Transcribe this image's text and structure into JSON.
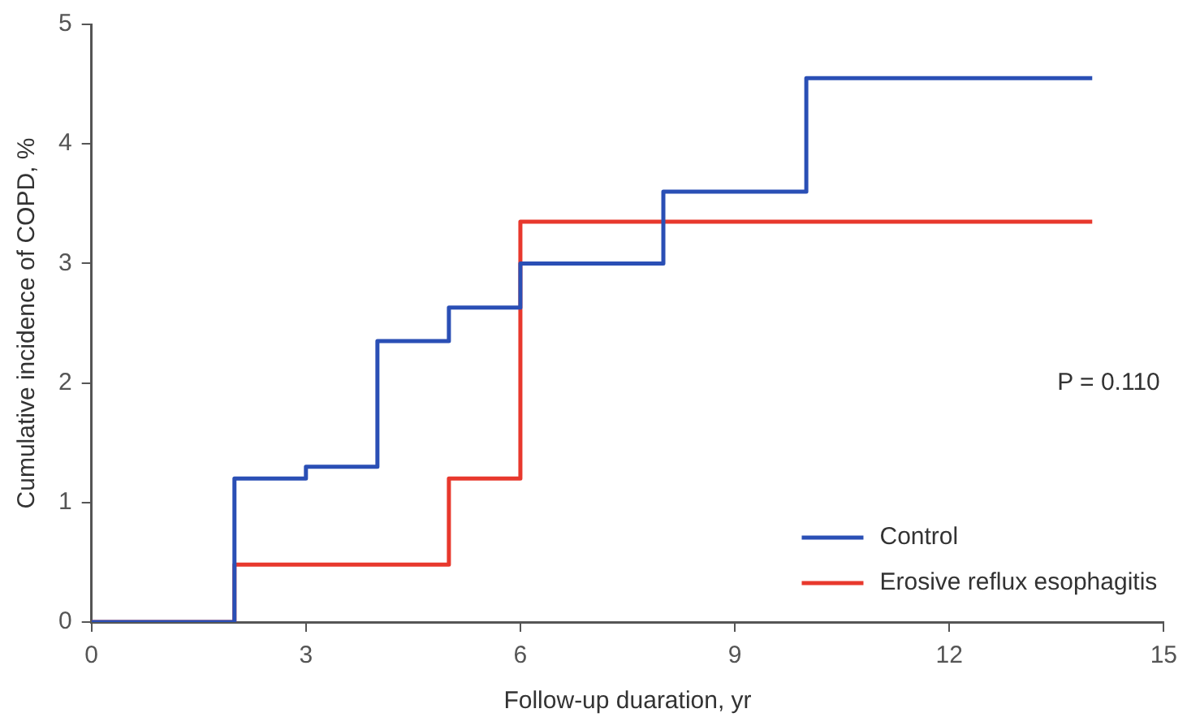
{
  "chart_data": {
    "type": "step",
    "xlabel": "Follow-up duaration, yr",
    "ylabel": "Cumulative incidence of COPD, %",
    "x": [
      0,
      2,
      3,
      4,
      5,
      6,
      8,
      10,
      14
    ],
    "series": [
      {
        "name": "Control",
        "color": "#2a4fb5",
        "values": [
          0,
          1.2,
          1.3,
          2.35,
          2.63,
          3.0,
          3.6,
          4.55,
          4.55
        ]
      },
      {
        "name": "Erosive reflux esophagitis",
        "color": "#e8382d",
        "x": [
          0,
          2,
          5,
          6,
          14
        ],
        "values": [
          0,
          0.48,
          1.2,
          3.35,
          3.35
        ]
      }
    ],
    "xlim": [
      0,
      15
    ],
    "xticks": [
      0,
      3,
      6,
      9,
      12,
      15
    ],
    "ylim": [
      0,
      5
    ],
    "yticks": [
      0,
      1,
      2,
      3,
      4,
      5
    ],
    "grid": false,
    "legend": "bottom right",
    "marker": "none",
    "line_style": "solid",
    "annotations": [
      "P = 0.110"
    ]
  }
}
